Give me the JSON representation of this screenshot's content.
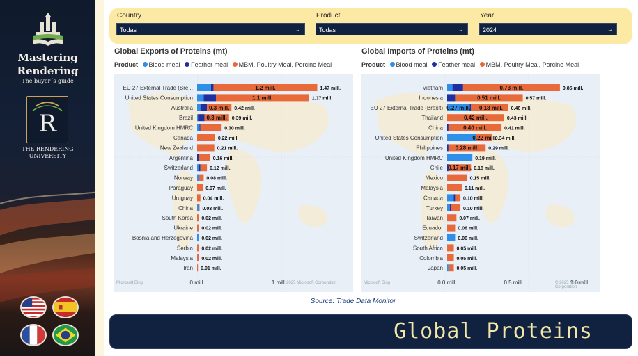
{
  "sidebar": {
    "brand_title_1": "Mastering",
    "brand_title_2": "Rendering",
    "brand_subtitle": "The buyer´s guide",
    "logo_letter": "R",
    "university_line1": "THE RENDERING",
    "university_line2": "UNIVERSITY",
    "flags": [
      "us-flag",
      "spain-flag",
      "france-flag",
      "brazil-flag"
    ]
  },
  "filters": [
    {
      "label": "Country",
      "value": "Todas"
    },
    {
      "label": "Product",
      "value": "Todas"
    },
    {
      "label": "Year",
      "value": "2024"
    }
  ],
  "colors": {
    "blood_meal": "#2f8fe8",
    "feather_meal": "#1f2fa0",
    "mbm": "#e8693a",
    "banner_bg": "#102240",
    "filter_bg": "#fce9a3"
  },
  "legend": {
    "title": "Product",
    "items": [
      "Blood meal",
      "Feather meal",
      "MBM, Poultry Meal, Porcine Meal"
    ]
  },
  "chart_data": [
    {
      "type": "bar",
      "title": "Global Exports of Proteins (mt)",
      "orientation": "horizontal",
      "stacked": true,
      "categories": [
        "EU 27 External Trade (Bre...",
        "United States Consumption",
        "Australia",
        "Brazil",
        "United Kingdom HMRC",
        "Canada",
        "New Zealand",
        "Argentina",
        "Switzerland",
        "Norway",
        "Paraguay",
        "Uruguay",
        "China",
        "South Korea",
        "Ukraine",
        "Bosnia and Herzegovina",
        "Serbia",
        "Malaysia",
        "Iran"
      ],
      "series": [
        {
          "name": "Blood meal",
          "values": [
            0.17,
            0.08,
            0.04,
            0.01,
            0.03,
            0.0,
            0.0,
            0.0,
            0.02,
            0.02,
            0.0,
            0.0,
            0.02,
            0.0,
            0.0,
            0.02,
            0.0,
            0.0,
            0.0
          ]
        },
        {
          "name": "Feather meal",
          "values": [
            0.03,
            0.15,
            0.08,
            0.08,
            0.01,
            0.0,
            0.0,
            0.02,
            0.02,
            0.0,
            0.0,
            0.0,
            0.0,
            0.0,
            0.0,
            0.0,
            0.0,
            0.0,
            0.0
          ]
        },
        {
          "name": "MBM, Poultry Meal, Porcine Meal",
          "values": [
            1.27,
            1.14,
            0.3,
            0.3,
            0.26,
            0.22,
            0.21,
            0.14,
            0.08,
            0.06,
            0.07,
            0.04,
            0.01,
            0.02,
            0.02,
            0.0,
            0.02,
            0.02,
            0.01
          ]
        }
      ],
      "segment_labels": [
        "1.2 mill.",
        "1.1 mill.",
        "0.3 mill.",
        "0.3 mill.",
        "",
        "",
        "",
        "",
        "",
        "",
        "",
        "",
        "",
        "",
        "",
        "",
        "",
        "",
        ""
      ],
      "total_labels": [
        "1.47 mill.",
        "1.37 mill.",
        "0.42 mill.",
        "0.39 mill.",
        "0.30 mill.",
        "0.22 mill.",
        "0.21 mill.",
        "0.16 mill.",
        "0.12 mill.",
        "0.08 mill.",
        "0.07 mill.",
        "0.04 mill.",
        "0.03 mill.",
        "0.02 mill.",
        "0.02 mill.",
        "0.02 mill.",
        "0.02 mill.",
        "0.02 mill.",
        "0.01 mill."
      ],
      "xlim": [
        0,
        1.5
      ],
      "x_ticks": [
        "0 mill.",
        "1 mill."
      ],
      "x_tick_values": [
        0,
        1
      ],
      "map_credit": "Microsoft Bing",
      "copyright": "© 2025 Microsoft Corporation"
    },
    {
      "type": "bar",
      "title": "Global Imports of Proteins (mt)",
      "orientation": "horizontal",
      "stacked": true,
      "categories": [
        "Vietnam",
        "Indonesia",
        "EU 27 External Trade (Brexit)",
        "Thailand",
        "China",
        "United States Consumption",
        "Philippines",
        "United Kingdom HMRC",
        "Chile",
        "Mexico",
        "Malaysia",
        "Canada",
        "Turkey",
        "Taiwan",
        "Ecuador",
        "Switzerland",
        "South Africa",
        "Colombia",
        "Japan"
      ],
      "series": [
        {
          "name": "Blood meal",
          "values": [
            0.04,
            0.0,
            0.17,
            0.0,
            0.0,
            0.22,
            0.0,
            0.19,
            0.0,
            0.0,
            0.0,
            0.05,
            0.02,
            0.0,
            0.0,
            0.06,
            0.0,
            0.0,
            0.01
          ]
        },
        {
          "name": "Feather meal",
          "values": [
            0.08,
            0.06,
            0.01,
            0.0,
            0.01,
            0.0,
            0.01,
            0.0,
            0.01,
            0.0,
            0.0,
            0.01,
            0.01,
            0.0,
            0.0,
            0.0,
            0.0,
            0.0,
            0.0
          ]
        },
        {
          "name": "MBM, Poultry Meal, Porcine Meal",
          "values": [
            0.73,
            0.51,
            0.28,
            0.43,
            0.4,
            0.12,
            0.28,
            0.0,
            0.17,
            0.15,
            0.11,
            0.04,
            0.07,
            0.07,
            0.06,
            0.0,
            0.05,
            0.05,
            0.04
          ]
        }
      ],
      "segment_labels": [
        "0.73 mill.",
        "0.51 mill.",
        "0.27 mill.|0.18 mill.",
        "0.42 mill.",
        "0.40 mill.",
        "0.22 mill.",
        "0.28 mill.",
        "",
        "0.17 mill.",
        "",
        "",
        "",
        "",
        "",
        "",
        "",
        "",
        "",
        ""
      ],
      "total_labels": [
        "0.85 mill.",
        "0.57 mill.",
        "0.46 mill.",
        "0.43 mill.",
        "0.41 mill.",
        "0.34 mill.",
        "0.29 mill.",
        "0.19 mill.",
        "0.18 mill.",
        "0.15 mill.",
        "0.11 mill.",
        "0.10 mill.",
        "0.10 mill.",
        "0.07 mill.",
        "0.06 mill.",
        "0.06 mill.",
        "0.05 mill.",
        "0.05 mill.",
        "0.05 mill."
      ],
      "xlim": [
        0,
        1.05
      ],
      "x_ticks": [
        "0.0 mill.",
        "0.5 mill.",
        "1.0 mill."
      ],
      "x_tick_values": [
        0,
        0.5,
        1.0
      ],
      "map_credit": "Microsoft Bing",
      "copyright": "© 2025 Microsoft Corporation"
    }
  ],
  "source_text": "Source: Trade Data Monitor",
  "banner_title": "Global Proteins"
}
